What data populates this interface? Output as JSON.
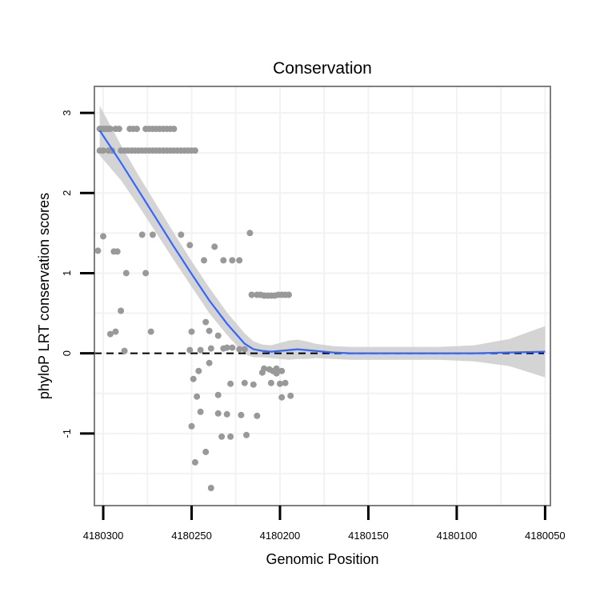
{
  "chart_data": {
    "type": "scatter",
    "title": "Conservation",
    "xlabel": "Genomic Position",
    "ylabel": "phyloP LRT conservation scores",
    "xlim": [
      4180305,
      4180047
    ],
    "ylim": [
      -1.9,
      3.33
    ],
    "x_reversed": true,
    "x_ticks": [
      4180300,
      4180250,
      4180200,
      4180150,
      4180100,
      4180050
    ],
    "x_tick_labels": [
      "4180300",
      "4180250",
      "4180200",
      "4180150",
      "4180100",
      "4180050"
    ],
    "y_ticks": [
      -1,
      0,
      1,
      2,
      3
    ],
    "y_tick_labels": [
      "-1",
      "0",
      "1",
      "2",
      "3"
    ],
    "grid": true,
    "hline": {
      "y": 0,
      "style": "dashed"
    },
    "colors": {
      "points": "#999999",
      "smooth_line": "#3366ff",
      "ribbon": "#cccccc",
      "grid": "#f2f2f2",
      "border": "#7f7f7f",
      "hline": "#000000"
    },
    "series": [
      {
        "name": "scores",
        "type": "scatter",
        "x": [
          4180302,
          4180301,
          4180300,
          4180299,
          4180298,
          4180297,
          4180296,
          4180293,
          4180291,
          4180285,
          4180283,
          4180281,
          4180276,
          4180274,
          4180272,
          4180270,
          4180268,
          4180266,
          4180264,
          4180262,
          4180260,
          4180302,
          4180300,
          4180297,
          4180295,
          4180290,
          4180288,
          4180286,
          4180284,
          4180282,
          4180280,
          4180278,
          4180276,
          4180274,
          4180272,
          4180270,
          4180268,
          4180266,
          4180264,
          4180262,
          4180260,
          4180258,
          4180256,
          4180254,
          4180252,
          4180250,
          4180248,
          4180303,
          4180300,
          4180294,
          4180292,
          4180290,
          4180287,
          4180278,
          4180276,
          4180272,
          4180256,
          4180251,
          4180243,
          4180237,
          4180232,
          4180227,
          4180223,
          4180217,
          4180216,
          4180213,
          4180211,
          4180209,
          4180207,
          4180205,
          4180203,
          4180201,
          4180199,
          4180197,
          4180195,
          4180296,
          4180293,
          4180288,
          4180273,
          4180251,
          4180242,
          4180235,
          4180232,
          4180230,
          4180227,
          4180223,
          4180220,
          4180210,
          4180206,
          4180204,
          4180202,
          4180199,
          4180197,
          4180194,
          4180249,
          4180246,
          4180245,
          4180240,
          4180235,
          4180230,
          4180228,
          4180220,
          4180215,
          4180213,
          4180209,
          4180205,
          4180202,
          4180200,
          4180199,
          4180250,
          4180248,
          4180247,
          4180245,
          4180242,
          4180239,
          4180235,
          4180233,
          4180228,
          4180222,
          4180219,
          4180250,
          4180240,
          4180239
        ],
        "y": [
          2.8,
          2.8,
          2.8,
          2.8,
          2.8,
          2.8,
          2.8,
          2.8,
          2.8,
          2.8,
          2.8,
          2.8,
          2.8,
          2.8,
          2.8,
          2.8,
          2.8,
          2.8,
          2.8,
          2.8,
          2.8,
          2.53,
          2.53,
          2.53,
          2.53,
          2.53,
          2.53,
          2.53,
          2.53,
          2.53,
          2.53,
          2.53,
          2.53,
          2.53,
          2.53,
          2.53,
          2.53,
          2.53,
          2.53,
          2.53,
          2.53,
          2.53,
          2.53,
          2.53,
          2.53,
          2.53,
          2.53,
          1.28,
          1.46,
          1.27,
          1.27,
          0.53,
          1.0,
          1.48,
          1.0,
          1.48,
          1.48,
          1.35,
          1.16,
          1.33,
          1.16,
          1.16,
          1.16,
          1.5,
          0.73,
          0.73,
          0.73,
          0.72,
          0.72,
          0.72,
          0.72,
          0.73,
          0.73,
          0.73,
          0.73,
          0.24,
          0.27,
          0.03,
          0.27,
          0.04,
          0.39,
          0.22,
          0.06,
          0.07,
          0.07,
          0.05,
          0.05,
          -0.24,
          -0.2,
          -0.22,
          -0.19,
          -0.22,
          -0.37,
          -0.53,
          -0.32,
          -0.22,
          0.04,
          -0.12,
          -0.52,
          -0.76,
          -1.04,
          -0.37,
          -0.39,
          -0.78,
          -0.19,
          -0.37,
          -0.25,
          -0.38,
          -0.55,
          -0.91,
          -1.36,
          -0.54,
          -0.73,
          -1.23,
          -1.68,
          -0.75,
          -1.04,
          -0.38,
          -0.77,
          -1.02,
          0.27,
          0.28,
          0.06
        ]
      },
      {
        "name": "smooth",
        "type": "line",
        "x": [
          4180302,
          4180290,
          4180280,
          4180270,
          4180260,
          4180250,
          4180240,
          4180230,
          4180220,
          4180215,
          4180210,
          4180205,
          4180200,
          4180195,
          4180190,
          4180185,
          4180180,
          4180170,
          4180160,
          4180150,
          4180130,
          4180110,
          4180090,
          4180070,
          4180050
        ],
        "y": [
          2.78,
          2.38,
          2.03,
          1.68,
          1.33,
          0.99,
          0.66,
          0.37,
          0.12,
          0.05,
          0.03,
          0.02,
          0.03,
          0.04,
          0.05,
          0.04,
          0.03,
          0.01,
          0.0,
          0.0,
          0.0,
          0.0,
          0.0,
          0.01,
          0.02
        ]
      },
      {
        "name": "confidence",
        "type": "ribbon",
        "x": [
          4180302,
          4180290,
          4180280,
          4180270,
          4180260,
          4180250,
          4180240,
          4180230,
          4180220,
          4180215,
          4180210,
          4180205,
          4180200,
          4180195,
          4180190,
          4180185,
          4180180,
          4180170,
          4180160,
          4180150,
          4180130,
          4180110,
          4180090,
          4180070,
          4180050
        ],
        "upper": [
          3.09,
          2.6,
          2.22,
          1.86,
          1.5,
          1.15,
          0.82,
          0.51,
          0.25,
          0.15,
          0.11,
          0.1,
          0.13,
          0.16,
          0.17,
          0.15,
          0.12,
          0.09,
          0.08,
          0.08,
          0.08,
          0.08,
          0.1,
          0.18,
          0.34
        ],
        "lower": [
          2.47,
          2.16,
          1.84,
          1.5,
          1.16,
          0.83,
          0.5,
          0.23,
          -0.01,
          -0.05,
          -0.05,
          -0.06,
          -0.07,
          -0.08,
          -0.07,
          -0.07,
          -0.06,
          -0.07,
          -0.08,
          -0.08,
          -0.08,
          -0.08,
          -0.1,
          -0.16,
          -0.3
        ]
      }
    ]
  }
}
